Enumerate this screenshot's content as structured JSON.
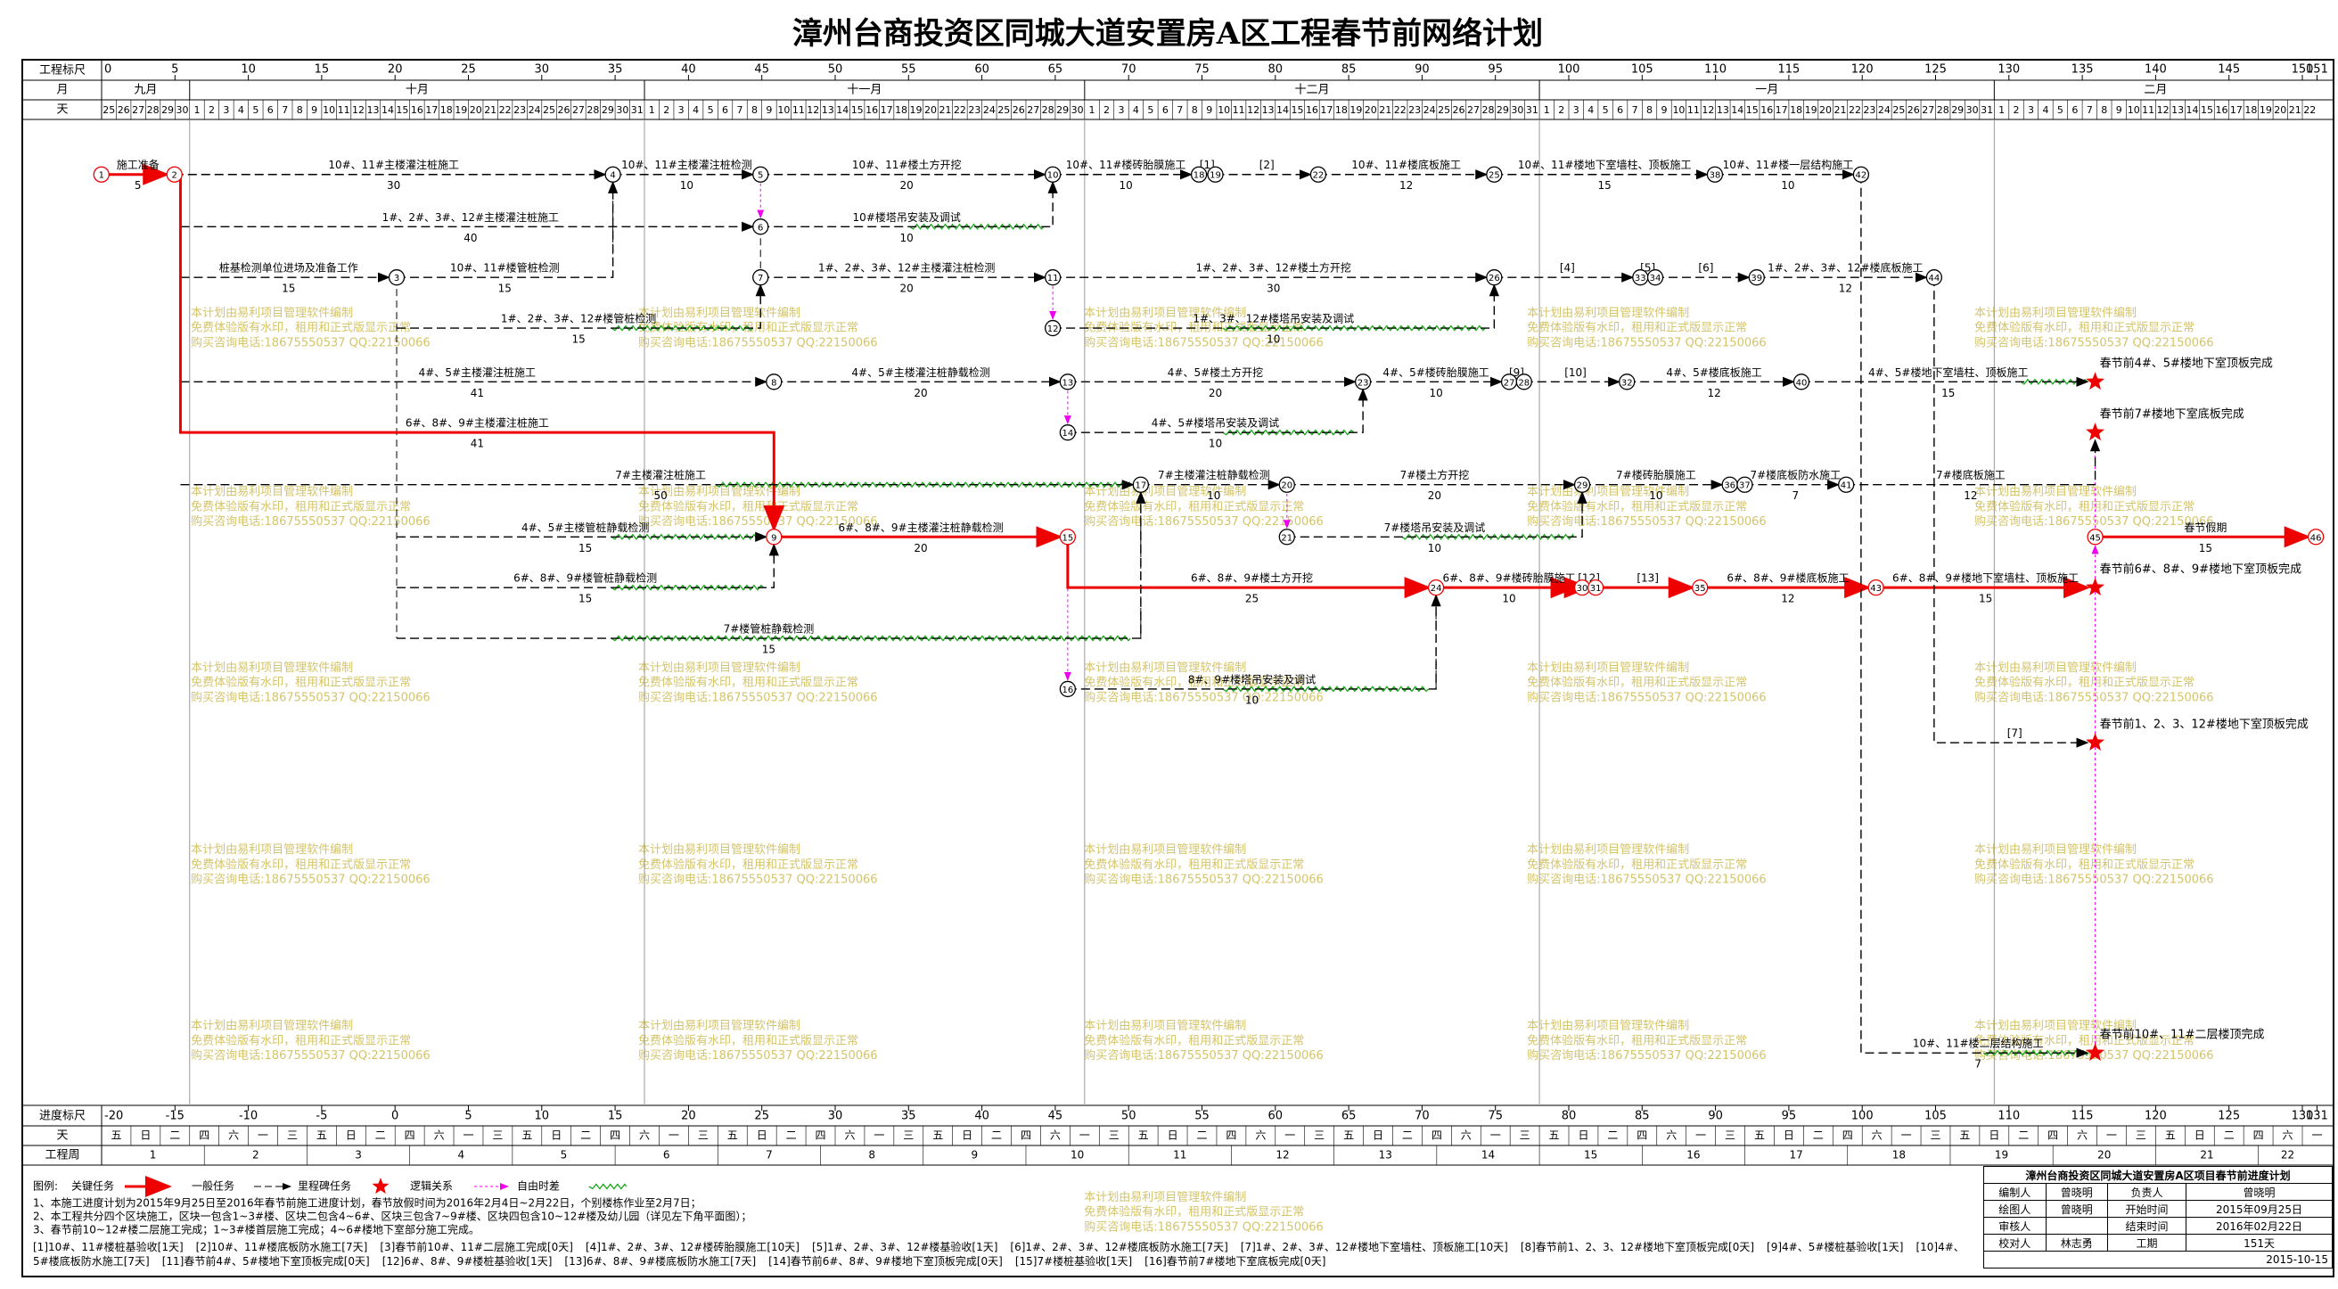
{
  "title": "漳州台商投资区同城大道安置房A区工程春节前网络计划",
  "header": {
    "scale_label": "工程标尺",
    "month_label": "月",
    "day_label": "天",
    "scale_ticks": [
      0,
      5,
      10,
      15,
      20,
      25,
      30,
      35,
      40,
      45,
      50,
      55,
      60,
      65,
      70,
      75,
      80,
      85,
      90,
      95,
      100,
      105,
      110,
      115,
      120,
      125,
      130,
      135,
      140,
      145,
      150,
      151
    ],
    "months": [
      "九月",
      "十月",
      "十一月",
      "十二月",
      "一月",
      "二月"
    ],
    "days": [
      25,
      26,
      27,
      28,
      29,
      30,
      1,
      2,
      3,
      4,
      5,
      6,
      7,
      8,
      9,
      10,
      11,
      12,
      13,
      14,
      15,
      16,
      17,
      18,
      19,
      20,
      21,
      22,
      23,
      24,
      25,
      26,
      27,
      28,
      29,
      30,
      31,
      1,
      2,
      3,
      4,
      5,
      6,
      7,
      8,
      9,
      10,
      11,
      12,
      13,
      14,
      15,
      16,
      17,
      18,
      19,
      20,
      21,
      22,
      23,
      24,
      25,
      26,
      27,
      28,
      29,
      30,
      1,
      2,
      3,
      4,
      5,
      6,
      7,
      8,
      9,
      10,
      11,
      12,
      13,
      14,
      15,
      16,
      17,
      18,
      19,
      20,
      21,
      22,
      23,
      24,
      25,
      26,
      27,
      28,
      29,
      30,
      31,
      1,
      2,
      3,
      4,
      5,
      6,
      7,
      8,
      9,
      10,
      11,
      12,
      13,
      14,
      15,
      16,
      17,
      18,
      19,
      20,
      21,
      22,
      23,
      24,
      25,
      26,
      27,
      28,
      29,
      30,
      31,
      1,
      2,
      3,
      4,
      5,
      6,
      7,
      8,
      9,
      10,
      11,
      12,
      13,
      14,
      15,
      16,
      17,
      18,
      19,
      20,
      21,
      22
    ]
  },
  "footer": {
    "scale_label": "进度标尺",
    "weekday_label": "天",
    "week_label": "工程周",
    "scale_ticks": [
      -20,
      -15,
      -10,
      -5,
      0,
      5,
      10,
      15,
      20,
      25,
      30,
      35,
      40,
      45,
      50,
      55,
      60,
      65,
      70,
      75,
      80,
      85,
      90,
      95,
      100,
      105,
      110,
      115,
      120,
      125,
      130,
      131
    ],
    "weekdays": [
      "五",
      "日",
      "二",
      "四",
      "六",
      "一",
      "三",
      "五",
      "日",
      "二",
      "四",
      "六",
      "一",
      "三",
      "五",
      "日",
      "二",
      "四",
      "六",
      "一",
      "三",
      "五",
      "日",
      "二",
      "四",
      "六",
      "一",
      "三",
      "五",
      "日",
      "二",
      "四",
      "六",
      "一",
      "三",
      "五",
      "日",
      "二",
      "四",
      "六",
      "一",
      "三",
      "五",
      "日",
      "二",
      "四",
      "六",
      "一",
      "三",
      "五",
      "日",
      "二",
      "四",
      "六",
      "一",
      "三",
      "五",
      "日",
      "二",
      "四",
      "六",
      "一",
      "三",
      "五",
      "日",
      "二",
      "四",
      "六",
      "一",
      "三",
      "五",
      "日",
      "二",
      "四",
      "六",
      "一"
    ],
    "weeks": [
      1,
      2,
      3,
      4,
      5,
      6,
      7,
      8,
      9,
      10,
      11,
      12,
      13,
      14,
      15,
      16,
      17,
      18,
      19,
      20,
      21,
      22
    ]
  },
  "nodes": [
    1,
    2,
    3,
    4,
    5,
    6,
    7,
    8,
    9,
    10,
    11,
    12,
    13,
    14,
    15,
    16,
    17,
    18,
    19,
    20,
    21,
    22,
    23,
    24,
    25,
    26,
    27,
    28,
    29,
    30,
    31,
    32,
    33,
    34,
    35,
    36,
    37,
    38,
    39,
    40,
    41,
    42,
    43,
    44,
    45,
    46
  ],
  "tasks": [
    {
      "name": "施工准备",
      "duration": 5,
      "kind": "critical"
    },
    {
      "name": "10#、11#主楼灌注桩施工",
      "duration": 30,
      "kind": "normal"
    },
    {
      "name": "10#、11#主楼灌注桩检测",
      "duration": 10,
      "kind": "normal"
    },
    {
      "name": "10#、11#楼土方开挖",
      "duration": 20,
      "kind": "normal"
    },
    {
      "name": "10#、11#楼砖胎膜施工",
      "duration": 10,
      "kind": "normal"
    },
    {
      "name": "[1]",
      "kind": "normal"
    },
    {
      "name": "[2]",
      "kind": "normal"
    },
    {
      "name": "10#、11#楼底板施工",
      "duration": 12,
      "kind": "normal"
    },
    {
      "name": "10#、11#楼地下室墙柱、顶板施工",
      "duration": 15,
      "kind": "normal"
    },
    {
      "name": "10#、11#楼一层结构施工",
      "duration": 10,
      "kind": "normal"
    },
    {
      "name": "1#、2#、3#、12#主楼灌注桩施工",
      "duration": 40,
      "kind": "normal"
    },
    {
      "name": "10#楼塔吊安装及调试",
      "duration": 10,
      "kind": "normal"
    },
    {
      "name": "桩基检测单位进场及准备工作",
      "duration": 15,
      "kind": "normal"
    },
    {
      "name": "10#、11#楼管桩检测",
      "duration": 15,
      "kind": "normal"
    },
    {
      "name": "1#、2#、3#、12#主楼灌注桩检测",
      "duration": 20,
      "kind": "normal"
    },
    {
      "name": "1#、2#、3#、12#楼土方开挖",
      "duration": 30,
      "kind": "normal"
    },
    {
      "name": "[4]",
      "kind": "normal"
    },
    {
      "name": "[5]",
      "kind": "normal"
    },
    {
      "name": "[6]",
      "kind": "normal"
    },
    {
      "name": "1#、2#、3#、12#楼底板施工",
      "duration": 12,
      "kind": "normal"
    },
    {
      "name": "1#、2#、3#、12#楼管桩检测",
      "duration": 15,
      "kind": "normal"
    },
    {
      "name": "1#、3#、12#楼塔吊安装及调试",
      "duration": 10,
      "kind": "normal"
    },
    {
      "name": "4#、5#主楼灌注桩施工",
      "duration": 41,
      "kind": "normal"
    },
    {
      "name": "4#、5#主楼灌注桩静载检测",
      "duration": 20,
      "kind": "normal"
    },
    {
      "name": "4#、5#楼土方开挖",
      "duration": 20,
      "kind": "normal"
    },
    {
      "name": "4#、5#楼砖胎膜施工",
      "duration": 10,
      "kind": "normal"
    },
    {
      "name": "[9]",
      "kind": "normal"
    },
    {
      "name": "[10]",
      "kind": "normal"
    },
    {
      "name": "4#、5#楼底板施工",
      "duration": 12,
      "kind": "normal"
    },
    {
      "name": "4#、5#楼地下室墙柱、顶板施工",
      "duration": 15,
      "kind": "normal"
    },
    {
      "name": "6#、8#、9#主楼灌注桩施工",
      "duration": 41,
      "kind": "critical"
    },
    {
      "name": "4#、5#楼塔吊安装及调试",
      "duration": 10,
      "kind": "normal"
    },
    {
      "name": "7#主楼灌注桩施工",
      "duration": 50,
      "kind": "normal"
    },
    {
      "name": "7#主楼灌注桩静载检测",
      "duration": 10,
      "kind": "normal"
    },
    {
      "name": "7#楼土方开挖",
      "duration": 20,
      "kind": "normal"
    },
    {
      "name": "7#楼砖胎膜施工",
      "duration": 10,
      "kind": "normal"
    },
    {
      "name": "7#楼底板防水施工",
      "duration": 7,
      "kind": "normal"
    },
    {
      "name": "7#楼底板施工",
      "duration": 12,
      "kind": "normal"
    },
    {
      "name": "4#、5#主楼管桩静载检测",
      "duration": 15,
      "kind": "normal"
    },
    {
      "name": "6#、8#、9#主楼灌注桩静载检测",
      "duration": 20,
      "kind": "critical"
    },
    {
      "name": "7#楼塔吊安装及调试",
      "duration": 10,
      "kind": "normal"
    },
    {
      "name": "春节假期",
      "duration": 15,
      "kind": "critical"
    },
    {
      "name": "6#、8#、9#楼管桩静载检测",
      "duration": 15,
      "kind": "normal"
    },
    {
      "name": "6#、8#、9#楼土方开挖",
      "duration": 25,
      "kind": "critical"
    },
    {
      "name": "6#、8#、9#楼砖胎膜施工",
      "duration": 10,
      "kind": "critical"
    },
    {
      "name": "[12]",
      "kind": "critical"
    },
    {
      "name": "[13]",
      "kind": "critical"
    },
    {
      "name": "6#、8#、9#楼底板施工",
      "duration": 12,
      "kind": "critical"
    },
    {
      "name": "6#、8#、9#楼地下室墙柱、顶板施工",
      "duration": 15,
      "kind": "critical"
    },
    {
      "name": "7#楼管桩静载检测",
      "duration": 15,
      "kind": "normal"
    },
    {
      "name": "8#、9#楼塔吊安装及调试",
      "duration": 10,
      "kind": "normal"
    },
    {
      "name": "[7]",
      "kind": "normal"
    },
    {
      "name": "10#、11#楼二层结构施工",
      "duration": 7,
      "kind": "normal"
    }
  ],
  "milestones": [
    "春节前4#、5#楼地下室顶板完成",
    "春节前7#楼地下室底板完成",
    "春节前6#、8#、9#楼地下室顶板完成",
    "春节前1、2、3、12#楼地下室顶板完成",
    "春节前10#、11#二层楼顶完成"
  ],
  "watermark": [
    "本计划由易利项目管理软件编制",
    "免费体验版有水印，租用和正式版显示正常",
    "购买咨询电话:18675550537 QQ:22150066"
  ],
  "legend": {
    "title": "图例:",
    "critical": "关键任务",
    "normal": "一般任务",
    "milestone": "里程碑任务",
    "logic": "逻辑关系",
    "float": "自由时差"
  },
  "notes": [
    "1、本施工进度计划为2015年9月25日至2016年春节前施工进度计划，春节放假时间为2016年2月4日~2月22日，个别楼栋作业至2月7日；",
    "2、本工程共分四个区块施工，区块一包含1~3#楼、区块二包含4~6#、区块三包含7~9#楼、区块四包含10~12#楼及幼儿园（详见左下角平面图）；",
    "3、春节前10~12#楼二层施工完成；1~3#楼首层施工完成；4~6#楼地下室部分施工完成。"
  ],
  "footnotes": [
    "[1]10#、11#楼桩基验收[1天]",
    "[2]10#、11#楼底板防水施工[7天]",
    "[3]春节前10#、11#二层施工完成[0天]",
    "[4]1#、2#、3#、12#楼砖胎膜施工[10天]",
    "[5]1#、2#、3#、12#楼基验收[1天]",
    "[6]1#、2#、3#、12#楼底板防水施工[7天]",
    "[7]1#、2#、3#、12#楼地下室墙柱、顶板施工[10天]",
    "[8]春节前1、2、3、12#楼地下室顶板完成[0天]",
    "[9]4#、5#楼桩基验收[1天]",
    "[10]4#、5#楼底板防水施工[7天]",
    "[11]春节前4#、5#楼地下室顶板完成[0天]",
    "[12]6#、8#、9#楼桩基验收[1天]",
    "[13]6#、8#、9#楼底板防水施工[7天]",
    "[14]春节前6#、8#、9#楼地下室顶板完成[0天]",
    "[15]7#楼桩基验收[1天]",
    "[16]春节前7#楼地下室底板完成[0天]"
  ],
  "info": {
    "title": "漳州台商投资区同城大道安置房A区项目春节前进度计划",
    "rows": [
      [
        "编制人",
        "曾晓明",
        "负责人",
        "曾晓明"
      ],
      [
        "绘图人",
        "曾晓明",
        "开始时间",
        "2015年09月25日"
      ],
      [
        "审核人",
        null,
        "结束时间",
        "2016年02月22日"
      ],
      [
        "校对人",
        "林志勇",
        "工期",
        "151天"
      ]
    ],
    "date": "2015-10-15"
  }
}
